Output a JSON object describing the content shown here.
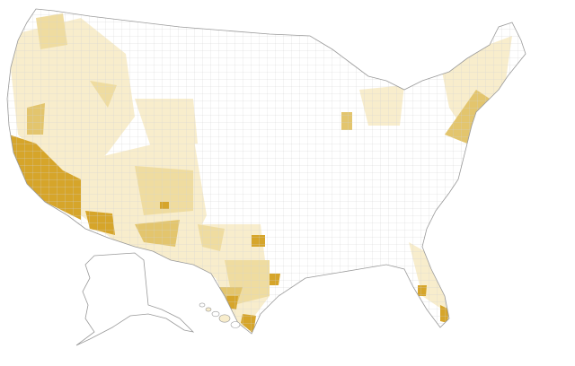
{
  "map": {
    "type": "choropleth",
    "colors": [
      "#ffffff",
      "#f8edcc",
      "#efdca0",
      "#e3c56d",
      "#d6a52a"
    ]
  }
}
